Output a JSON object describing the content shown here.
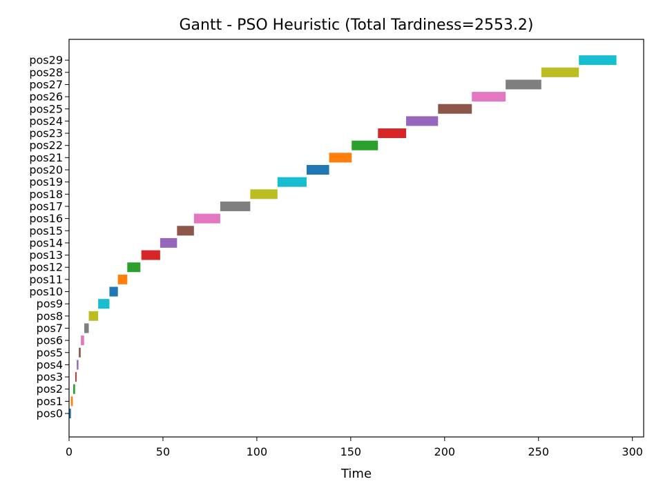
{
  "chart_data": {
    "type": "bar",
    "orientation": "horizontal",
    "title": "Gantt - PSO Heuristic (Total Tardiness=2553.2)",
    "xlabel": "Time",
    "ylabel": "",
    "xlim": [
      0,
      306
    ],
    "xticks": [
      0,
      50,
      100,
      150,
      200,
      250,
      300
    ],
    "grid": false,
    "categories": [
      "pos0",
      "pos1",
      "pos2",
      "pos3",
      "pos4",
      "pos5",
      "pos6",
      "pos7",
      "pos8",
      "pos9",
      "pos10",
      "pos11",
      "pos12",
      "pos13",
      "pos14",
      "pos15",
      "pos16",
      "pos17",
      "pos18",
      "pos19",
      "pos20",
      "pos21",
      "pos22",
      "pos23",
      "pos24",
      "pos25",
      "pos26",
      "pos27",
      "pos28",
      "pos29"
    ],
    "tasks": [
      {
        "start": 0.0,
        "end": 1.0,
        "color": "#1f77b4"
      },
      {
        "start": 1.0,
        "end": 2.0,
        "color": "#ff7f0e"
      },
      {
        "start": 2.2,
        "end": 3.2,
        "color": "#2ca02c"
      },
      {
        "start": 3.3,
        "end": 4.0,
        "color": "#d62728"
      },
      {
        "start": 4.1,
        "end": 5.0,
        "color": "#9467bd"
      },
      {
        "start": 5.2,
        "end": 6.2,
        "color": "#8c564b"
      },
      {
        "start": 6.3,
        "end": 8.0,
        "color": "#e377c2"
      },
      {
        "start": 8.1,
        "end": 10.5,
        "color": "#7f7f7f"
      },
      {
        "start": 10.5,
        "end": 15.5,
        "color": "#bcbd22"
      },
      {
        "start": 15.5,
        "end": 21.5,
        "color": "#17becf"
      },
      {
        "start": 21.5,
        "end": 26.0,
        "color": "#1f77b4"
      },
      {
        "start": 26.0,
        "end": 31.0,
        "color": "#ff7f0e"
      },
      {
        "start": 31.0,
        "end": 38.0,
        "color": "#2ca02c"
      },
      {
        "start": 38.5,
        "end": 48.5,
        "color": "#d62728"
      },
      {
        "start": 48.5,
        "end": 57.5,
        "color": "#9467bd"
      },
      {
        "start": 57.5,
        "end": 66.5,
        "color": "#8c564b"
      },
      {
        "start": 66.5,
        "end": 80.5,
        "color": "#e377c2"
      },
      {
        "start": 80.5,
        "end": 96.5,
        "color": "#7f7f7f"
      },
      {
        "start": 96.5,
        "end": 111.0,
        "color": "#bcbd22"
      },
      {
        "start": 111.0,
        "end": 126.5,
        "color": "#17becf"
      },
      {
        "start": 126.5,
        "end": 138.5,
        "color": "#1f77b4"
      },
      {
        "start": 138.5,
        "end": 150.5,
        "color": "#ff7f0e"
      },
      {
        "start": 150.5,
        "end": 164.5,
        "color": "#2ca02c"
      },
      {
        "start": 164.5,
        "end": 179.5,
        "color": "#d62728"
      },
      {
        "start": 179.5,
        "end": 196.5,
        "color": "#9467bd"
      },
      {
        "start": 196.5,
        "end": 214.5,
        "color": "#8c564b"
      },
      {
        "start": 214.5,
        "end": 232.5,
        "color": "#e377c2"
      },
      {
        "start": 232.5,
        "end": 251.5,
        "color": "#7f7f7f"
      },
      {
        "start": 251.5,
        "end": 271.5,
        "color": "#bcbd22"
      },
      {
        "start": 271.5,
        "end": 291.5,
        "color": "#17becf"
      }
    ]
  }
}
